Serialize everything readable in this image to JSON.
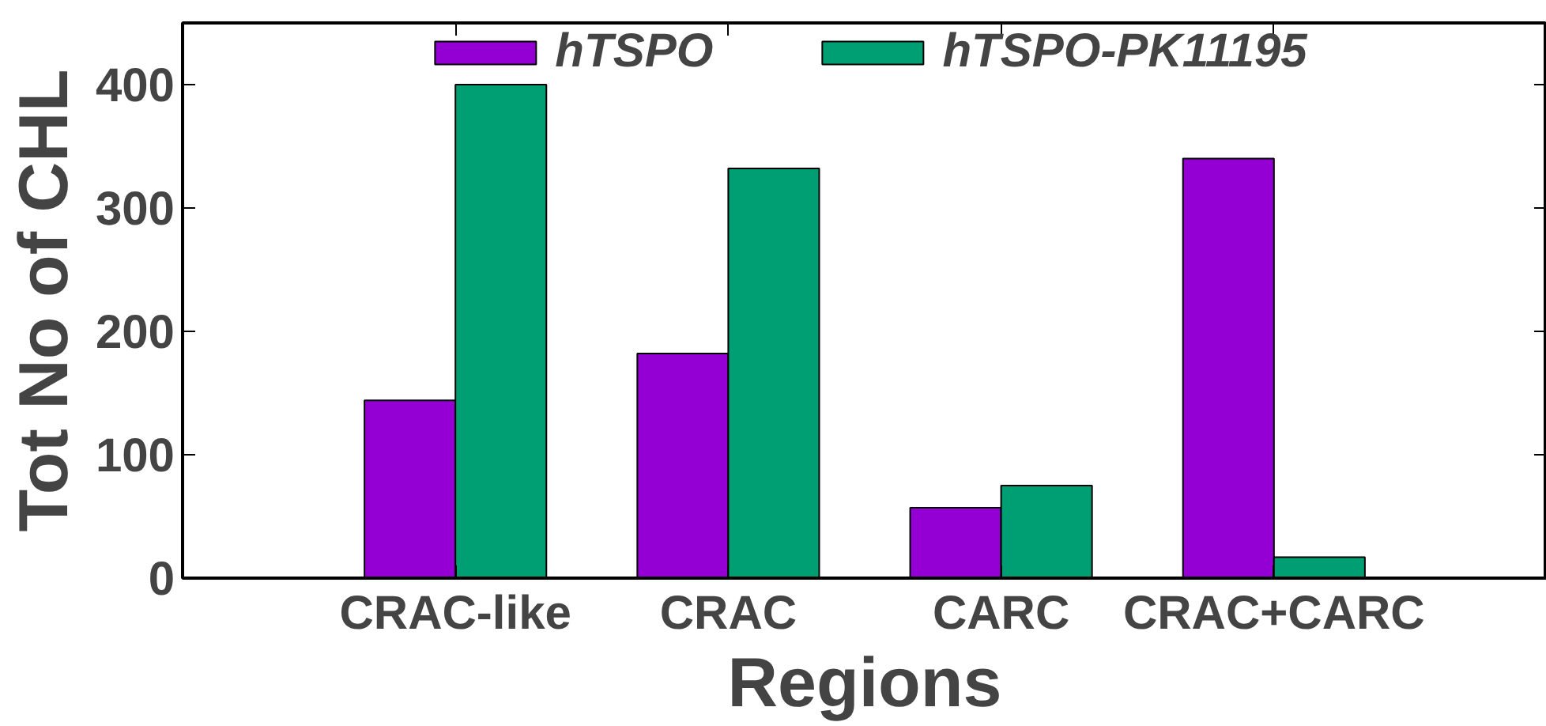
{
  "chart_data": {
    "type": "bar",
    "xlabel": "Regions",
    "ylabel": "Tot No of CHL",
    "categories": [
      "CRAC-like",
      "CRAC",
      "CARC",
      "CRAC+CARC"
    ],
    "series": [
      {
        "name": "hTSPO",
        "color": "#9400d3",
        "values": [
          144,
          182,
          57,
          340
        ]
      },
      {
        "name": "hTSPO-PK11195",
        "color": "#009e73",
        "values": [
          400,
          332,
          75,
          17
        ]
      }
    ],
    "ylim": [
      0,
      450
    ],
    "yticks": [
      0,
      100,
      200,
      300,
      400
    ],
    "grid": false,
    "legend": "top"
  }
}
